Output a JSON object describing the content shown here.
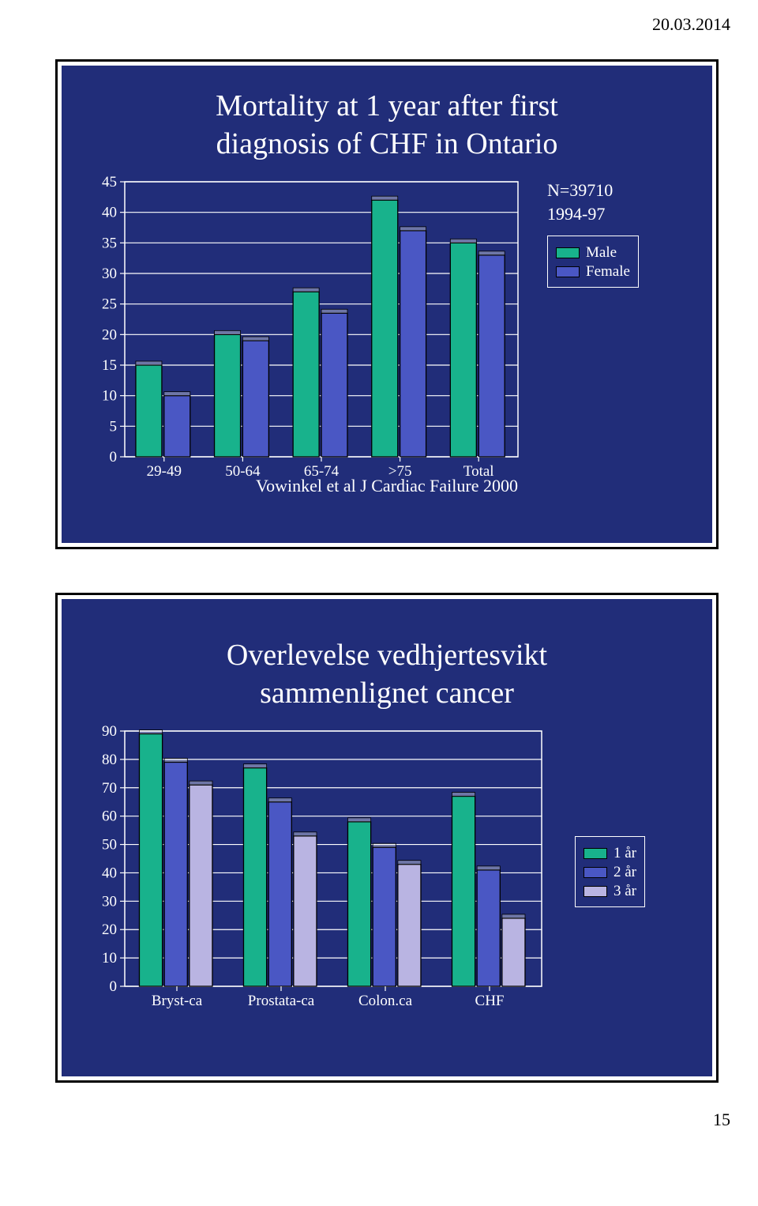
{
  "page": {
    "date": "20.03.2014",
    "number": "15"
  },
  "slide1": {
    "title_line1": "Mortality at 1 year after first",
    "title_line2": "diagnosis of CHF in Ontario",
    "chart": {
      "type": "grouped-bar",
      "categories": [
        "29-49",
        "50-64",
        "65-74",
        ">75",
        "Total"
      ],
      "series": {
        "male": {
          "label": "Male",
          "color": "#18b28c",
          "values": [
            15,
            20,
            27,
            42,
            35
          ]
        },
        "female": {
          "label": "Female",
          "color": "#4a57c4",
          "values": [
            10,
            19,
            23.5,
            37,
            33
          ]
        }
      },
      "ylim": [
        0,
        45
      ],
      "ytick_step": 5,
      "bg": "#212d79",
      "grid_color": "#ffffff",
      "tick_fontsize": 19,
      "bar_outline": "#000000"
    },
    "legend": {
      "note1": "N=39710",
      "note2": "1994-97"
    },
    "source": "Vowinkel et al J Cardiac Failure 2000"
  },
  "slide2": {
    "title_line1": "Overlevelse vedhjertesvikt",
    "title_line2": "sammenlignet cancer",
    "chart": {
      "type": "grouped-bar",
      "categories": [
        "Bryst-ca",
        "Prostata-ca",
        "Colon.ca",
        "CHF"
      ],
      "series": {
        "y1": {
          "label": "1 år",
          "color": "#18b28c",
          "values": [
            89,
            77,
            58,
            67
          ]
        },
        "y2": {
          "label": "2 år",
          "color": "#4a57c4",
          "values": [
            79,
            65,
            49,
            41
          ]
        },
        "y3": {
          "label": "3 år",
          "color": "#b9b4e2",
          "values": [
            71,
            53,
            43,
            24
          ]
        }
      },
      "ylim": [
        0,
        90
      ],
      "ytick_step": 10,
      "bg": "#212d79",
      "grid_color": "#ffffff",
      "tick_fontsize": 19,
      "bar_outline": "#000000"
    }
  }
}
